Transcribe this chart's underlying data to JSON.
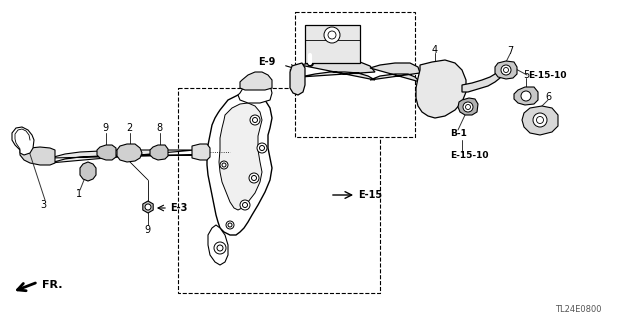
{
  "bg_color": "#ffffff",
  "part_number": "TL24E0800",
  "black": "#000000",
  "gray": "#888888",
  "lgray": "#bbbbbb",
  "ldr_color": "#333333",
  "labels": {
    "E9": "E-9",
    "E15": "E-15",
    "E3": "E-3",
    "E15_10a": "E-15-10",
    "E15_10b": "E-15-10",
    "B1": "B-1",
    "FR": "FR."
  }
}
